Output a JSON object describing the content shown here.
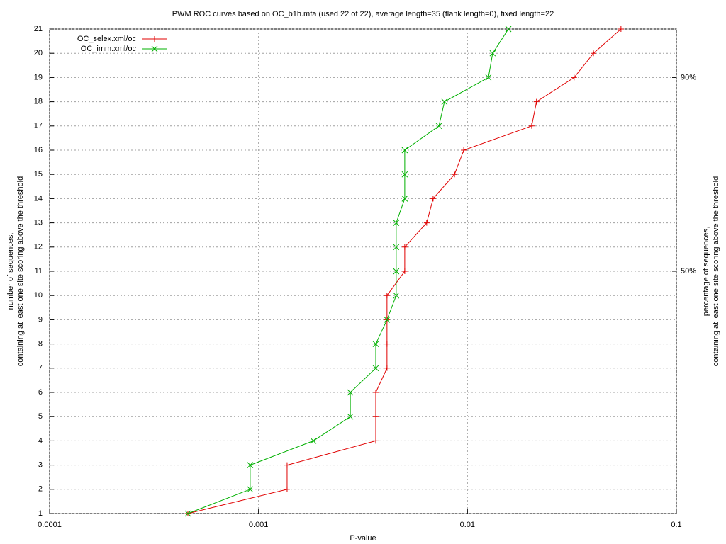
{
  "chart_data": {
    "type": "line",
    "title": "PWM ROC curves based on OC_b1h.mfa (used 22 of 22), average length=35 (flank length=0), fixed length=22",
    "xlabel": "P-value",
    "ylabel": [
      "number of sequences,",
      "containing at least one site scoring above the threshold"
    ],
    "y2label": [
      "percentage of sequences,",
      "containing at least one site scoring above the threshold"
    ],
    "xscale": "log",
    "xlim": [
      0.0001,
      0.1
    ],
    "xticks": [
      0.0001,
      0.001,
      0.01,
      0.1
    ],
    "ylim": [
      1,
      21
    ],
    "yticks": [
      1,
      2,
      3,
      4,
      5,
      6,
      7,
      8,
      9,
      10,
      11,
      12,
      13,
      14,
      15,
      16,
      17,
      18,
      19,
      20,
      21
    ],
    "y2lim": [
      0,
      100
    ],
    "y2ticks": [
      {
        "value": 50,
        "label": "50%"
      },
      {
        "value": 90,
        "label": "90%"
      }
    ],
    "grid": true,
    "legend": "top-left",
    "series": [
      {
        "name": "OC_selex.xml/oc",
        "color": "#e00000",
        "marker": "plus",
        "x": [
          0.000459,
          0.00137,
          0.00137,
          0.00364,
          0.00364,
          0.00364,
          0.00412,
          0.00412,
          0.00412,
          0.00412,
          0.00501,
          0.00501,
          0.00638,
          0.00685,
          0.00867,
          0.0096,
          0.0203,
          0.0214,
          0.0324,
          0.0401,
          0.0543
        ],
        "values": [
          1,
          2,
          3,
          4,
          5,
          6,
          7,
          8,
          9,
          10,
          11,
          12,
          13,
          14,
          15,
          16,
          17,
          18,
          19,
          20,
          21
        ]
      },
      {
        "name": "OC_imm.xml/oc",
        "color": "#00b000",
        "marker": "cross",
        "x": [
          0.000459,
          0.000912,
          0.000912,
          0.00183,
          0.00275,
          0.00275,
          0.00364,
          0.00364,
          0.00412,
          0.00456,
          0.00456,
          0.00456,
          0.00456,
          0.00501,
          0.00501,
          0.00501,
          0.0073,
          0.00776,
          0.0126,
          0.0132,
          0.0157
        ],
        "values": [
          1,
          2,
          3,
          4,
          5,
          6,
          7,
          8,
          9,
          10,
          11,
          12,
          13,
          14,
          15,
          16,
          17,
          18,
          19,
          20,
          21
        ]
      }
    ]
  }
}
